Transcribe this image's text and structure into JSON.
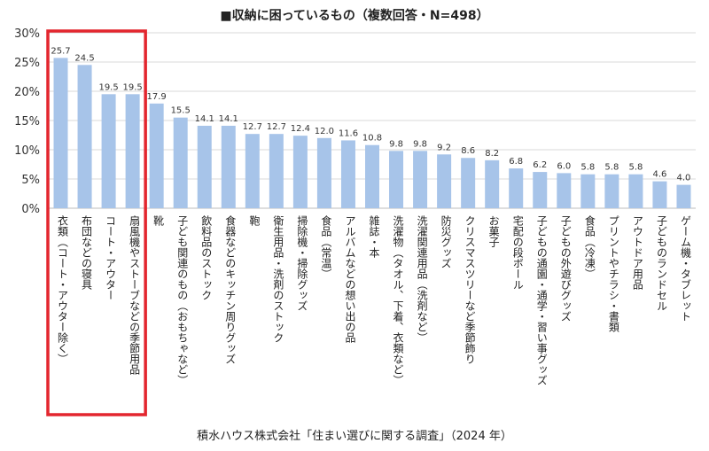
{
  "chart_data": {
    "type": "bar",
    "title": "■収納に困っているもの（複数回答・N=498）",
    "source": "積水ハウス株式会社「住まい選びに関する調査」（2024 年）",
    "xlabel": "",
    "ylabel": "",
    "ylim": [
      0,
      30
    ],
    "yticks": [
      "0%",
      "5%",
      "10%",
      "15%",
      "20%",
      "25%",
      "30%"
    ],
    "grid": true,
    "bar_color": "#a7c4e9",
    "highlight_color": "#e3262e",
    "highlight_count": 4,
    "categories": [
      "衣類（コート・アウター除く）",
      "布団などの寝具",
      "コート・アウター",
      "扇風機やストーブなどの季節用品",
      "靴",
      "子ども関連のもの（おもちゃなど）",
      "飲料品のストック",
      "食器などのキッチン周りグッズ",
      "鞄",
      "衛生用品・洗剤のストック",
      "掃除機・掃除グッズ",
      "食品（常温）",
      "アルバムなどの想い出の品",
      "雑誌・本",
      "洗濯物（タオル、下着、衣類など）",
      "洗濯関連用品（洗剤など）",
      "防災グッズ",
      "クリスマスツリーなど季節飾り",
      "お菓子",
      "宅配の段ボール",
      "子どもの通園・通学・習い事グッズ",
      "子どもの外遊びグッズ",
      "食品（冷凍）",
      "プリントやチラシ・書類",
      "アウトドア用品",
      "子どものランドセル",
      "ゲーム機・タブレット"
    ],
    "values": [
      25.7,
      24.5,
      19.5,
      19.5,
      17.9,
      15.5,
      14.1,
      14.1,
      12.7,
      12.7,
      12.4,
      12.0,
      11.6,
      10.8,
      9.8,
      9.8,
      9.2,
      8.6,
      8.2,
      6.8,
      6.2,
      6.0,
      5.8,
      5.8,
      5.8,
      4.6,
      4.0
    ],
    "value_labels": [
      "25.7",
      "24.5",
      "19.5",
      "19.5",
      "17.9",
      "15.5",
      "14.1",
      "14.1",
      "12.7",
      "12.7",
      "12.4",
      "12.0",
      "11.6",
      "10.8",
      "9.8",
      "9.8",
      "9.2",
      "8.6",
      "8.2",
      "6.8",
      "6.2",
      "6.0",
      "5.8",
      "5.8",
      "5.8",
      "4.6",
      "4.0"
    ]
  }
}
